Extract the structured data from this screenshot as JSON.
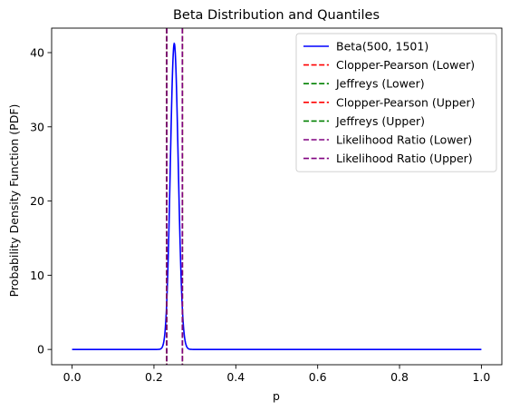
{
  "chart_data": {
    "type": "line",
    "title": "Beta Distribution and Quantiles",
    "xlabel": "p",
    "ylabel": "Probability Density Function (PDF)",
    "xlim": [
      -0.05,
      1.05
    ],
    "ylim": [
      -2.06,
      43.3
    ],
    "x_ticks": [
      0.0,
      0.2,
      0.4,
      0.6,
      0.8,
      1.0
    ],
    "x_tick_labels": [
      "0.0",
      "0.2",
      "0.4",
      "0.6",
      "0.8",
      "1.0"
    ],
    "y_ticks": [
      0,
      10,
      20,
      30,
      40
    ],
    "y_tick_labels": [
      "0",
      "10",
      "20",
      "30",
      "40"
    ],
    "grid": false,
    "legend_position": "top-right",
    "curve": {
      "name": "Beta(500, 1501)",
      "distribution": "beta",
      "alpha": 500,
      "beta": 1501,
      "x_range": [
        0.0,
        1.0
      ],
      "peak_x": 0.2499,
      "peak_y": 41.2,
      "color": "#0000ff",
      "style": "solid"
    },
    "vlines": [
      {
        "name": "Clopper-Pearson (Lower)",
        "x": 0.2311,
        "color": "#ff0000",
        "style": "dashed"
      },
      {
        "name": "Jeffreys (Lower)",
        "x": 0.2312,
        "color": "#008000",
        "style": "dashed"
      },
      {
        "name": "Clopper-Pearson (Upper)",
        "x": 0.2695,
        "color": "#ff0000",
        "style": "dashed"
      },
      {
        "name": "Jeffreys (Upper)",
        "x": 0.2694,
        "color": "#008000",
        "style": "dashed"
      },
      {
        "name": "Likelihood Ratio (Lower)",
        "x": 0.2313,
        "color": "#800080",
        "style": "dashed"
      },
      {
        "name": "Likelihood Ratio (Upper)",
        "x": 0.2693,
        "color": "#800080",
        "style": "dashed"
      }
    ]
  }
}
